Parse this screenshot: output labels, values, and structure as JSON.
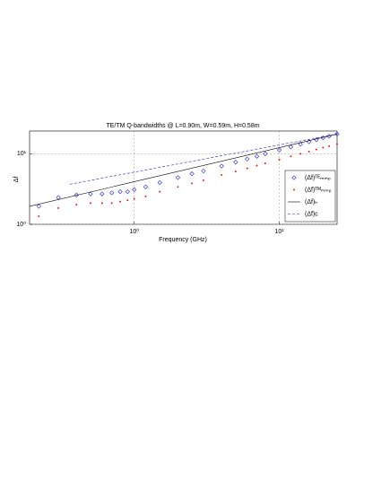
{
  "chart_data": {
    "type": "loglog",
    "title": "TE/TM Q-bandwidths @ L=0.90m, W=0.59m, H=0.58m",
    "xlabel": "Frequency (GHz)",
    "ylabel": "Δf",
    "xlim": [
      0.19,
      25
    ],
    "ylim": [
      1,
      21
    ],
    "xticks": [
      {
        "value": 1,
        "label": "10⁰"
      },
      {
        "value": 10,
        "label": "10¹"
      }
    ],
    "yticks": [
      {
        "value": 1,
        "label": "10⁰"
      },
      {
        "value": 10,
        "label": "10¹"
      }
    ],
    "log_x": true,
    "log_y": true,
    "grid": true,
    "legend_position": "lower right",
    "series": [
      {
        "name": "(Δf)ᵀᴱₘₘₚ",
        "color": "#2020d0",
        "marker": "diamond",
        "x": [
          0.22,
          0.3,
          0.4,
          0.5,
          0.6,
          0.7,
          0.8,
          0.9,
          1,
          1.2,
          1.5,
          2,
          2.5,
          3,
          4,
          5,
          6,
          7,
          8,
          10,
          12,
          14,
          16,
          18,
          20,
          22,
          25
        ],
        "values": [
          1.8,
          2.4,
          2.6,
          2.7,
          2.7,
          2.8,
          2.9,
          2.9,
          3.1,
          3.4,
          3.9,
          4.6,
          5.2,
          5.7,
          6.7,
          7.6,
          8.4,
          9.2,
          10,
          11.3,
          12.5,
          13.7,
          14.8,
          15.8,
          16.8,
          17.7,
          19
        ]
      },
      {
        "name": "(Δf)ᵀᴹₘₘₚ",
        "color": "#e02020",
        "marker": "dot",
        "x": [
          0.22,
          0.3,
          0.4,
          0.5,
          0.6,
          0.7,
          0.8,
          0.9,
          1,
          1.2,
          1.5,
          2,
          2.5,
          3,
          4,
          5,
          6,
          7,
          8,
          10,
          12,
          14,
          16,
          18,
          20,
          22,
          25
        ],
        "values": [
          1.3,
          1.7,
          1.9,
          2.0,
          2.0,
          2.0,
          2.1,
          2.2,
          2.3,
          2.5,
          2.9,
          3.4,
          3.8,
          4.2,
          5.0,
          5.6,
          6.2,
          6.8,
          7.3,
          8.3,
          9.2,
          10,
          10.7,
          11.5,
          12.2,
          12.8,
          13.8
        ]
      },
      {
        "name": "(Δf)ₕ",
        "color": "#000000",
        "marker": "line-solid",
        "x": [
          0.19,
          25
        ],
        "values": [
          1.8,
          19
        ]
      },
      {
        "name": "(Δf)c",
        "color": "#2020d0",
        "marker": "line-dashed",
        "x": [
          0.36,
          25
        ],
        "values": [
          3.7,
          19
        ]
      }
    ]
  }
}
